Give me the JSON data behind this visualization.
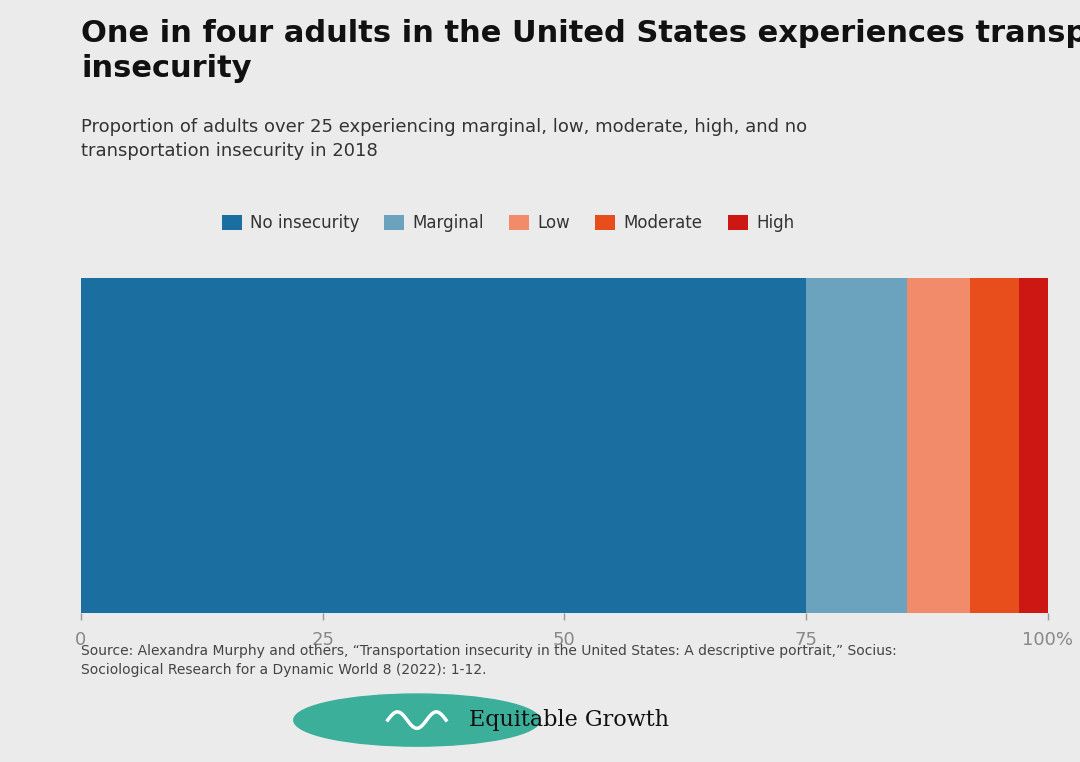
{
  "title": "One in four adults in the United States experiences transportation\ninsecurity",
  "subtitle": "Proportion of adults over 25 experiencing marginal, low, moderate, high, and no\ntransportation insecurity in 2018",
  "categories": [
    "No insecurity",
    "Marginal",
    "Low",
    "Moderate",
    "High"
  ],
  "values": [
    75.0,
    10.5,
    6.5,
    5.0,
    3.0
  ],
  "colors": [
    "#1A6FA0",
    "#6BA3BE",
    "#F28B6A",
    "#E84D1C",
    "#CC1713"
  ],
  "xticks": [
    0,
    25,
    50,
    75,
    100
  ],
  "xtick_labels": [
    "0",
    "25",
    "50",
    "75",
    "100%"
  ],
  "background_color": "#EBEBEB",
  "source_text": "Source: Alexandra Murphy and others, “Transportation insecurity in the United States: A descriptive portrait,” Socius:\nSociological Research for a Dynamic World 8 (2022): 1-12.",
  "logo_text": "Equitable Growth",
  "title_fontsize": 22,
  "subtitle_fontsize": 13,
  "legend_fontsize": 12,
  "tick_fontsize": 13,
  "source_fontsize": 10,
  "logo_color": "#3BAF9A"
}
